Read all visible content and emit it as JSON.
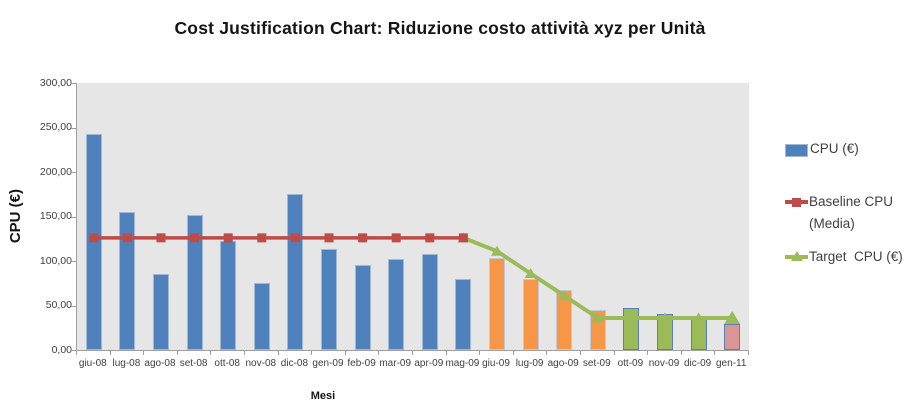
{
  "title": "Cost Justification Chart: Riduzione costo attività xyz per Unità",
  "y_axis": {
    "title": "CPU (€)",
    "tick_labels": [
      "300,00",
      "250,00",
      "200,00",
      "150,00",
      "100,00",
      "50,00",
      "0,00"
    ]
  },
  "x_axis": {
    "title": "Mesi"
  },
  "legend": {
    "position": "right",
    "items": [
      {
        "label": "CPU (€)",
        "swatch": "bar",
        "color": "#4f81bd"
      },
      {
        "label": "Baseline CPU (Media)",
        "swatch": "line-square",
        "color": "#be4b48"
      },
      {
        "label": "Target  CPU (€)",
        "swatch": "line-triangle",
        "color": "#9bbb59"
      }
    ]
  },
  "chart_data": {
    "type": "bar",
    "title": "Cost Justification Chart: Riduzione costo attività xyz per Unità",
    "xlabel": "Mesi",
    "ylabel": "CPU (€)",
    "ylim": [
      0,
      300
    ],
    "ytick_step": 50,
    "grid": false,
    "legend_position": "right",
    "categories": [
      "giu-08",
      "lug-08",
      "ago-08",
      "set-08",
      "ott-08",
      "nov-08",
      "dic-08",
      "gen-09",
      "feb-09",
      "mar-09",
      "apr-09",
      "mag-09",
      "giu-09",
      "lug-09",
      "ago-09",
      "set-09",
      "ott-09",
      "nov-09",
      "dic-09",
      "gen-11"
    ],
    "series": [
      {
        "name": "CPU (€)",
        "type": "bar",
        "values": [
          243,
          155,
          85,
          152,
          123,
          75,
          175,
          114,
          95,
          102,
          108,
          80,
          103,
          80,
          67,
          45,
          47,
          41,
          37,
          29
        ],
        "fills": [
          "#4f81bd",
          "#4f81bd",
          "#4f81bd",
          "#4f81bd",
          "#4f81bd",
          "#4f81bd",
          "#4f81bd",
          "#4f81bd",
          "#4f81bd",
          "#4f81bd",
          "#4f81bd",
          "#4f81bd",
          "#f79646",
          "#f79646",
          "#f79646",
          "#f79646",
          "#9bbb59",
          "#9bbb59",
          "#9bbb59",
          "#da9694"
        ],
        "strokes": [
          "#a3b8d1",
          "#a3b8d1",
          "#a3b8d1",
          "#a3b8d1",
          "#a3b8d1",
          "#a3b8d1",
          "#a3b8d1",
          "#a3b8d1",
          "#a3b8d1",
          "#a3b8d1",
          "#a3b8d1",
          "#a3b8d1",
          "#c0cbda",
          "#c0cbda",
          "#c0cbda",
          "#c0cbda",
          "#5a80b4",
          "#5a80b4",
          "#5a80b4",
          "#5a80b4"
        ]
      },
      {
        "name": "Baseline CPU (Media)",
        "type": "line",
        "marker": "square",
        "color": "#be4b48",
        "values": [
          126,
          126,
          126,
          126,
          126,
          126,
          126,
          126,
          126,
          126,
          126,
          126,
          null,
          null,
          null,
          null,
          null,
          null,
          null,
          null
        ]
      },
      {
        "name": "Target CPU (€)",
        "type": "line",
        "marker": "triangle",
        "color": "#9bbb59",
        "values": [
          null,
          null,
          null,
          null,
          null,
          null,
          null,
          null,
          null,
          null,
          null,
          126,
          111,
          86,
          61,
          36,
          36,
          36,
          36,
          36
        ]
      }
    ]
  },
  "colors": {
    "plot_background": "#e6e6e6",
    "axis_line": "#a0a0a0",
    "bar_blue": "#4f81bd",
    "bar_orange": "#f79646",
    "bar_green": "#9bbb59",
    "bar_pink": "#da9694",
    "baseline_red": "#be4b48",
    "target_green": "#9bbb59"
  }
}
